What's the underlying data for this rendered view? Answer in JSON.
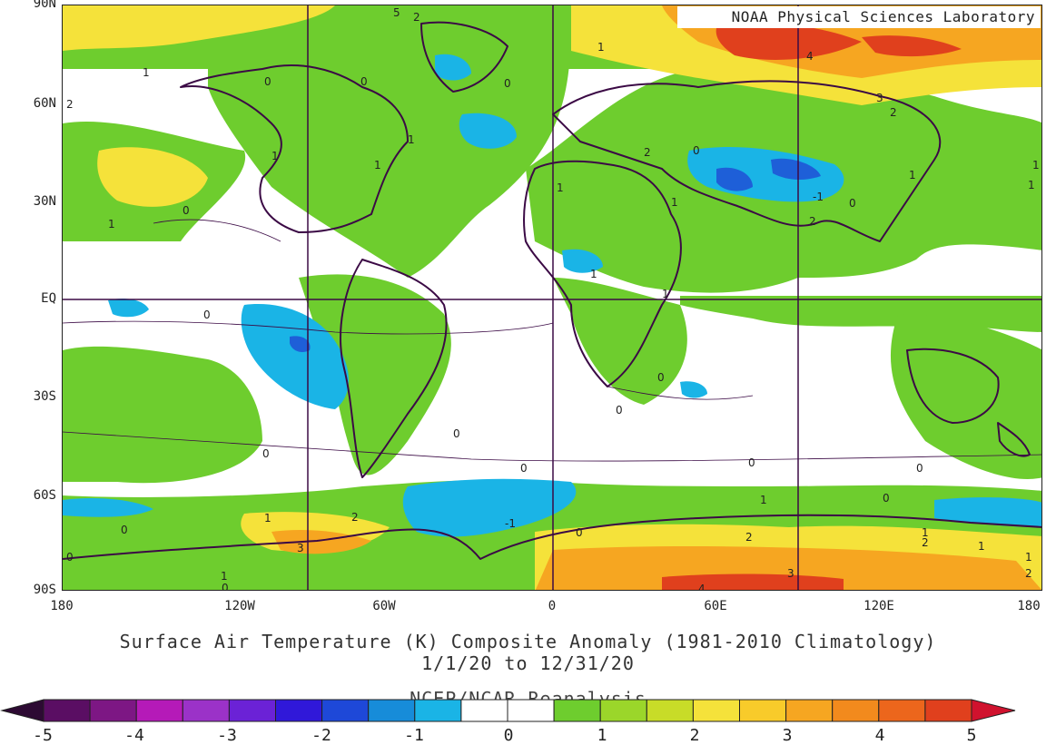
{
  "map": {
    "credit": "NOAA Physical Sciences Laboratory",
    "lat_labels": [
      "90N",
      "60N",
      "30N",
      "EQ",
      "30S",
      "60S",
      "90S"
    ],
    "lon_labels": [
      "180",
      "120W",
      "60W",
      "0",
      "60E",
      "120E",
      "180"
    ],
    "contour_labels": [
      "5",
      "2",
      "1",
      "1",
      "0",
      "0",
      "0",
      "1",
      "1",
      "1",
      "1",
      "2",
      "2",
      "4",
      "3",
      "2",
      "1",
      "1",
      "0",
      "1",
      "0",
      "2",
      "1",
      "1",
      "1",
      "-1",
      "0",
      "1",
      "0",
      "0",
      "0",
      "0",
      "0",
      "0",
      "0",
      "0",
      "0",
      "0",
      "1",
      "0",
      "1",
      "0",
      "1",
      "2",
      "3",
      "1",
      "2",
      "-1",
      "0",
      "2",
      "3",
      "4",
      "1",
      "2",
      "1"
    ],
    "colors": {
      "land_outline": "#3b0a45",
      "grid": "#3b0a45",
      "anomaly_0_1": "#ffffff",
      "anomaly_1_2": "#6ecd2e",
      "anomaly_2_3": "#f5e23a",
      "anomaly_3_4": "#f6a621",
      "anomaly_4_5": "#e0401d",
      "anomaly_neg1_0": "#19b4e6",
      "anomaly_neg2_neg1": "#1e5fd8"
    }
  },
  "title": {
    "line1": "Surface Air Temperature (K) Composite Anomaly (1981-2010 Climatology)",
    "line2": "1/1/20  to 12/31/20",
    "line3": "NCEP/NCAR Reanalysis"
  },
  "colorbar": {
    "labels": [
      "-5",
      "-4",
      "-3",
      "-2",
      "-1",
      "0",
      "1",
      "2",
      "3",
      "4",
      "5"
    ],
    "colors": [
      "#5a0e63",
      "#7d1784",
      "#b51ab8",
      "#9b32c8",
      "#6b22d6",
      "#3018d9",
      "#1e48d8",
      "#178cd9",
      "#1ab4e6",
      "#ffffff",
      "#ffffff",
      "#6ecd2e",
      "#9bd62a",
      "#c8dc28",
      "#f5e23a",
      "#f8cb2a",
      "#f6a621",
      "#f28a1d",
      "#ec661c",
      "#e0401d"
    ],
    "low_cap": "#2d0a33",
    "high_cap": "#d0122e"
  }
}
